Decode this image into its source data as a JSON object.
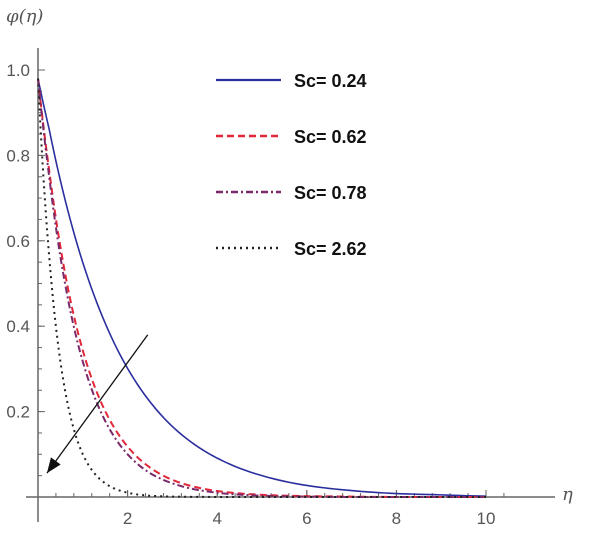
{
  "chart_data": {
    "type": "line",
    "title": "",
    "xlabel": "η",
    "ylabel": "φ(η)",
    "xlim": [
      0,
      10.5
    ],
    "ylim": [
      0,
      1.05
    ],
    "grid": false,
    "legend_placement": "top-right",
    "xticks": [
      2,
      4,
      6,
      8,
      10
    ],
    "xtick_labels": [
      "2",
      "4",
      "6",
      "8",
      "10"
    ],
    "yticks": [
      0.2,
      0.4,
      0.6,
      0.8,
      1.0
    ],
    "ytick_labels": [
      "0.2",
      "0.4",
      "0.6",
      "0.8",
      "1.0"
    ],
    "x": [
      0,
      0.25,
      0.5,
      0.75,
      1,
      1.5,
      2,
      2.5,
      3,
      4,
      5,
      6,
      7,
      8,
      9,
      10
    ],
    "series": [
      {
        "name": "Sc= 0.24",
        "color": "#2b2f9e",
        "style": "solid",
        "values": [
          0.98,
          0.861,
          0.741,
          0.638,
          0.549,
          0.407,
          0.301,
          0.223,
          0.165,
          0.091,
          0.05,
          0.027,
          0.015,
          0.008,
          0.005,
          0.002
        ]
      },
      {
        "name": "Sc= 0.62",
        "color": "#e0283a",
        "style": "dashed",
        "values": [
          0.98,
          0.765,
          0.586,
          0.448,
          0.343,
          0.201,
          0.118,
          0.069,
          0.04,
          0.014,
          0.005,
          0.002,
          0.001,
          0,
          0,
          0
        ]
      },
      {
        "name": "Sc= 0.78",
        "color": "#7a2a6a",
        "style": "dashdot",
        "values": [
          0.98,
          0.75,
          0.563,
          0.422,
          0.317,
          0.178,
          0.1,
          0.056,
          0.032,
          0.01,
          0.003,
          0.001,
          0,
          0,
          0,
          0
        ]
      },
      {
        "name": "Sc= 2.62",
        "color": "#222222",
        "style": "dotted",
        "values": [
          0.98,
          0.563,
          0.317,
          0.178,
          0.1,
          0.032,
          0.01,
          0.003,
          0.001,
          0,
          0,
          0,
          0,
          0,
          0,
          0
        ]
      }
    ],
    "annotation_arrow": {
      "from": [
        2.45,
        0.38
      ],
      "to": [
        0.2,
        0.056
      ],
      "color": "#111111"
    }
  }
}
